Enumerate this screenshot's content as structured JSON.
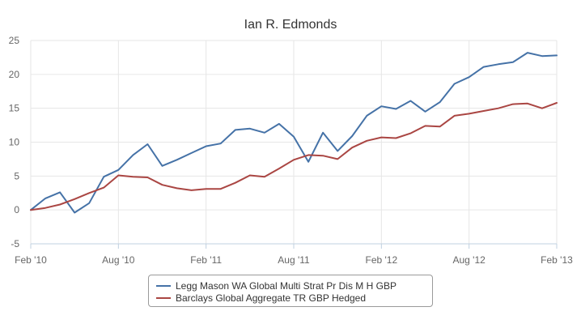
{
  "chart_data": {
    "type": "line",
    "title": "Ian R. Edmonds",
    "xlabel": "",
    "ylabel": "",
    "ylim": [
      -5,
      25
    ],
    "yticks": [
      -5,
      0,
      5,
      10,
      15,
      20,
      25
    ],
    "x_start": "Feb '10",
    "x_end": "Feb '13",
    "x_ticks": [
      "Feb '10",
      "Aug '10",
      "Feb '11",
      "Aug '11",
      "Feb '12",
      "Aug '12",
      "Feb '13"
    ],
    "x_months": [
      0,
      1,
      2,
      3,
      4,
      5,
      6,
      7,
      8,
      9,
      10,
      11,
      12,
      13,
      14,
      15,
      16,
      17,
      18,
      19,
      20,
      21,
      22,
      23,
      24,
      25,
      26,
      27,
      28,
      29,
      30,
      31,
      32,
      33,
      34,
      35,
      36
    ],
    "grid": true,
    "legend_position": "bottom-center",
    "series": [
      {
        "name": "Legg Mason WA Global Multi Strat Pr Dis M H GBP",
        "color": "#4572a7",
        "values": [
          0,
          1.7,
          2.6,
          -0.4,
          1.0,
          4.9,
          5.9,
          8.1,
          9.7,
          6.5,
          7.4,
          8.4,
          9.4,
          9.8,
          11.8,
          12.0,
          11.4,
          12.7,
          10.8,
          7.1,
          11.4,
          8.7,
          10.9,
          13.9,
          15.3,
          14.9,
          16.1,
          14.5,
          15.9,
          18.6,
          19.6,
          21.1,
          21.5,
          21.8,
          23.2,
          22.7,
          22.8
        ]
      },
      {
        "name": "Barclays Global Aggregate TR GBP Hedged",
        "color": "#aa4643",
        "values": [
          0,
          0.3,
          0.8,
          1.6,
          2.5,
          3.3,
          5.1,
          4.9,
          4.8,
          3.7,
          3.2,
          2.9,
          3.1,
          3.1,
          4.0,
          5.1,
          4.9,
          6.1,
          7.4,
          8.1,
          8.0,
          7.5,
          9.2,
          10.2,
          10.7,
          10.6,
          11.3,
          12.4,
          12.3,
          13.9,
          14.2,
          14.6,
          15.0,
          15.6,
          15.7,
          15.0,
          15.8
        ]
      }
    ]
  }
}
